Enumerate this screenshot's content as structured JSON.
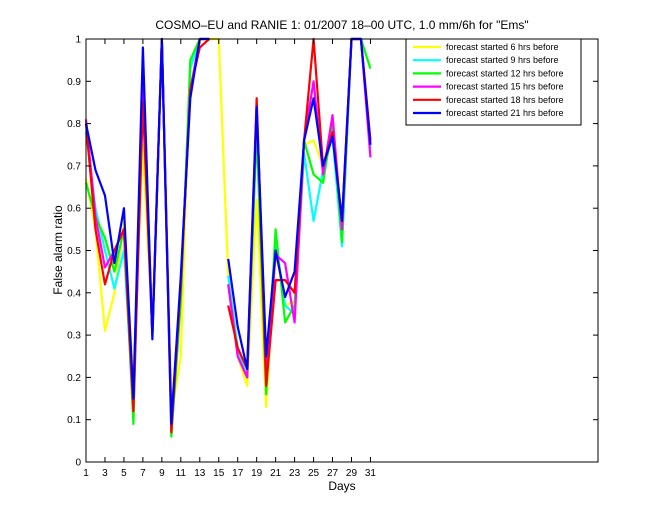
{
  "chart_data": {
    "type": "line",
    "title": "COSMO–EU and RANIE 1: 01/2007 18–00 UTC, 1.0 mm/6h for \"Ems\"",
    "xlabel": "Days",
    "ylabel": "False alarm ratio",
    "xlim": [
      1,
      55
    ],
    "ylim": [
      0,
      1
    ],
    "xticks": [
      "1",
      "3",
      "5",
      "7",
      "9",
      "11",
      "13",
      "15",
      "17",
      "19",
      "21",
      "23",
      "25",
      "27",
      "29",
      "31"
    ],
    "yticks": [
      "0",
      "0.1",
      "0.2",
      "0.3",
      "0.4",
      "0.5",
      "0.6",
      "0.7",
      "0.8",
      "0.9",
      "1"
    ],
    "grid": false,
    "legend_position": "top-right",
    "x": [
      1,
      2,
      3,
      4,
      5,
      6,
      7,
      8,
      9,
      10,
      11,
      12,
      13,
      14,
      15,
      16,
      17,
      18,
      19,
      20,
      21,
      22,
      23,
      24,
      25,
      26,
      27,
      28,
      29,
      30,
      31
    ],
    "series": [
      {
        "name": "forecast started 6 hrs before",
        "color": "#ffff00",
        "values": [
          0.67,
          0.55,
          0.31,
          0.4,
          0.57,
          0.2,
          0.75,
          0.31,
          1.0,
          0.11,
          0.25,
          0.95,
          1.0,
          1.0,
          1.0,
          0.44,
          0.25,
          0.18,
          0.62,
          0.13,
          0.5,
          0.37,
          0.38,
          0.75,
          0.76,
          0.7,
          0.77,
          0.55,
          1.0,
          1.0,
          0.76
        ]
      },
      {
        "name": "forecast started 9 hrs before",
        "color": "#00ffff",
        "values": [
          0.78,
          0.6,
          0.5,
          0.41,
          0.5,
          0.13,
          0.95,
          0.3,
          1.0,
          0.09,
          0.4,
          0.93,
          1.0,
          1.0,
          null,
          0.44,
          0.27,
          0.2,
          0.8,
          0.22,
          0.52,
          0.37,
          0.35,
          0.73,
          0.57,
          0.69,
          0.77,
          0.51,
          1.0,
          1.0,
          0.74
        ]
      },
      {
        "name": "forecast started 12 hrs before",
        "color": "#00ff00",
        "values": [
          0.66,
          0.58,
          0.53,
          0.45,
          0.55,
          0.09,
          0.93,
          0.3,
          1.0,
          0.06,
          0.38,
          0.95,
          1.0,
          1.0,
          null,
          0.42,
          0.25,
          0.2,
          0.78,
          0.16,
          0.55,
          0.33,
          0.37,
          0.76,
          0.68,
          0.66,
          0.8,
          0.52,
          1.0,
          1.0,
          0.93
        ]
      },
      {
        "name": "forecast started 15 hrs before",
        "color": "#ff00ff",
        "values": [
          0.81,
          0.58,
          0.46,
          0.5,
          0.55,
          0.15,
          0.9,
          0.3,
          1.0,
          0.1,
          0.42,
          0.88,
          1.0,
          1.0,
          null,
          0.42,
          0.25,
          0.2,
          0.84,
          0.22,
          0.49,
          0.47,
          0.33,
          0.76,
          0.9,
          0.68,
          0.82,
          0.55,
          1.0,
          1.0,
          0.72
        ]
      },
      {
        "name": "forecast started 18 hrs before",
        "color": "#ff0000",
        "values": [
          0.8,
          0.55,
          0.42,
          0.5,
          0.55,
          0.12,
          0.85,
          0.3,
          1.0,
          0.07,
          0.42,
          0.88,
          0.98,
          1.0,
          null,
          0.37,
          0.27,
          0.22,
          0.86,
          0.18,
          0.43,
          0.43,
          0.4,
          0.76,
          1.0,
          0.7,
          0.78,
          0.57,
          1.0,
          1.0,
          0.76
        ]
      },
      {
        "name": "forecast started 21 hrs before",
        "color": "#0000ff",
        "values": [
          0.8,
          0.69,
          0.63,
          0.47,
          0.6,
          0.15,
          0.98,
          0.29,
          1.0,
          0.09,
          0.44,
          0.86,
          1.0,
          1.0,
          null,
          0.48,
          0.32,
          0.22,
          0.84,
          0.25,
          0.5,
          0.39,
          0.45,
          0.76,
          0.86,
          0.7,
          0.77,
          0.57,
          1.0,
          1.0,
          0.75
        ]
      }
    ]
  }
}
